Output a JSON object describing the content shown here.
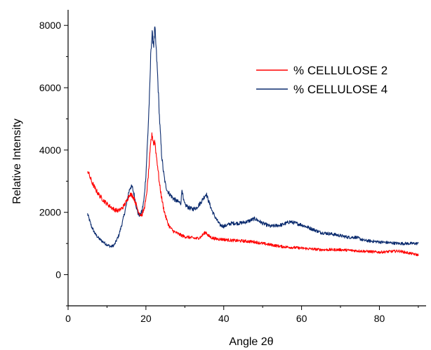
{
  "chart_data": {
    "type": "line",
    "title": "",
    "xlabel": "Angle 2θ",
    "ylabel": "Relative Intensity",
    "xlim": [
      0,
      92
    ],
    "ylim": [
      -1000,
      8500
    ],
    "x_ticks": [
      0,
      20,
      40,
      60,
      80
    ],
    "y_ticks": [
      0,
      2000,
      4000,
      6000,
      8000
    ],
    "grid": false,
    "legend_position": "top-right",
    "series": [
      {
        "name": "% CELLULOSE 2",
        "color": "#ff0000",
        "x": [
          5,
          6,
          7,
          8,
          9,
          10,
          11,
          12,
          13,
          14,
          15,
          15.8,
          16.5,
          17,
          17.5,
          18,
          18.5,
          19,
          19.5,
          20,
          20.5,
          21,
          21.3,
          21.6,
          22,
          22.3,
          22.6,
          23,
          23.5,
          24,
          24.5,
          25,
          25.5,
          26,
          27,
          28,
          29,
          29.5,
          30,
          31,
          32,
          33,
          34,
          35,
          35.5,
          36,
          37,
          38,
          40,
          42,
          45,
          48,
          50,
          55,
          60,
          65,
          70,
          75,
          80,
          85,
          90
        ],
        "y": [
          3350,
          3000,
          2750,
          2550,
          2400,
          2270,
          2170,
          2080,
          2050,
          2150,
          2350,
          2580,
          2550,
          2430,
          2250,
          2050,
          1930,
          1920,
          2100,
          2400,
          3000,
          3800,
          4300,
          4500,
          4200,
          4300,
          3900,
          3500,
          2900,
          2500,
          2150,
          1900,
          1700,
          1550,
          1400,
          1330,
          1270,
          1240,
          1220,
          1200,
          1180,
          1160,
          1200,
          1330,
          1360,
          1250,
          1180,
          1150,
          1130,
          1100,
          1080,
          1050,
          1000,
          900,
          850,
          800,
          800,
          760,
          720,
          760,
          630
        ]
      },
      {
        "name": "% CELLULOSE 4",
        "color": "#0b2b6e",
        "x": [
          5,
          6,
          7,
          8,
          9,
          10,
          11,
          11.5,
          12,
          13,
          14,
          15,
          15.5,
          16,
          16.5,
          17,
          17.5,
          18,
          18.5,
          19,
          19.5,
          20,
          20.5,
          21,
          21.3,
          21.6,
          22,
          22.3,
          22.6,
          23,
          23.5,
          24,
          24.5,
          25,
          25.5,
          26,
          27,
          28,
          29,
          29.3,
          29.6,
          30,
          31,
          32,
          33,
          34,
          35,
          35.5,
          36,
          37,
          38,
          39,
          40,
          42,
          44,
          46,
          48,
          50,
          52,
          55,
          57,
          60,
          62,
          65,
          68,
          70,
          72,
          74,
          76,
          80,
          85,
          90
        ],
        "y": [
          1950,
          1550,
          1300,
          1150,
          1050,
          960,
          900,
          920,
          980,
          1250,
          1700,
          2250,
          2600,
          2820,
          2800,
          2550,
          2200,
          1950,
          1900,
          2050,
          2400,
          3200,
          4500,
          6000,
          7300,
          7700,
          7400,
          7900,
          7300,
          6400,
          5000,
          3900,
          3300,
          2900,
          2700,
          2600,
          2450,
          2350,
          2300,
          2800,
          2400,
          2250,
          2150,
          2100,
          2150,
          2300,
          2500,
          2600,
          2400,
          2050,
          1800,
          1600,
          1550,
          1650,
          1650,
          1700,
          1800,
          1650,
          1550,
          1600,
          1700,
          1600,
          1500,
          1350,
          1300,
          1250,
          1200,
          1200,
          1100,
          1050,
          1000,
          1000
        ]
      }
    ]
  }
}
